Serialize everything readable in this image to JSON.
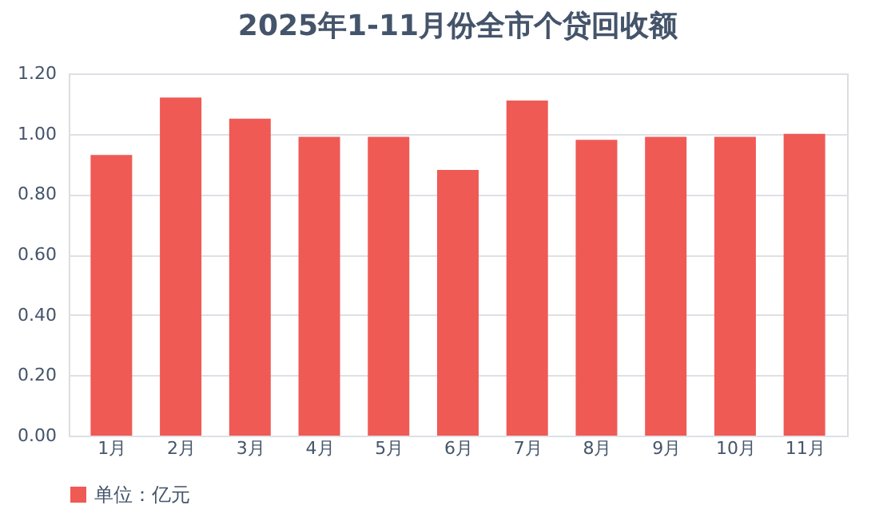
{
  "chart_data": {
    "type": "bar",
    "title": "2025年1-11月份全市个贷回收额",
    "categories": [
      "1月",
      "2月",
      "3月",
      "4月",
      "5月",
      "6月",
      "7月",
      "8月",
      "9月",
      "10月",
      "11月"
    ],
    "series": [
      {
        "name": "单位：亿元",
        "color": "#ef5a55",
        "values": [
          0.93,
          1.12,
          1.05,
          0.99,
          0.99,
          0.88,
          1.11,
          0.98,
          0.99,
          0.99,
          1.0
        ]
      }
    ],
    "ylim": [
      0,
      1.2
    ],
    "yticks": [
      {
        "value": 0,
        "label": "0.00"
      },
      {
        "value": 0.2,
        "label": "0.20"
      },
      {
        "value": 0.4,
        "label": "0.40"
      },
      {
        "value": 0.6,
        "label": "0.60"
      },
      {
        "value": 0.8,
        "label": "0.80"
      },
      {
        "value": 1.0,
        "label": "1.00"
      },
      {
        "value": 1.2,
        "label": "1.20"
      }
    ],
    "grid": "y",
    "legend": "bottom"
  }
}
